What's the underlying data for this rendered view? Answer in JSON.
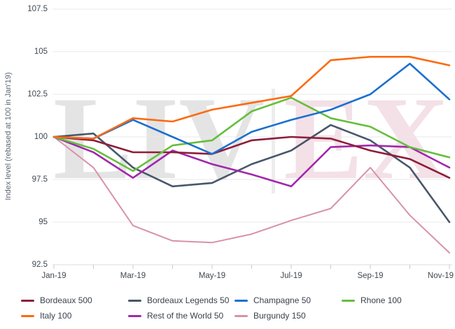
{
  "watermark": {
    "left": "LIV",
    "divider": "|",
    "right": "EX",
    "left_color": "#e4e4e4",
    "right_color": "#f3e1e7"
  },
  "chart_data": {
    "type": "line",
    "title": "",
    "ylabel": "Index level (rebased at 100 in Jan'19)",
    "xlabel": "",
    "ylim": [
      92.5,
      107.5
    ],
    "yticks": [
      "107.5",
      "105",
      "102.5",
      "100",
      "97.5",
      "95",
      "92.5"
    ],
    "ytick_values": [
      107.5,
      105,
      102.5,
      100,
      97.5,
      95,
      92.5
    ],
    "x": [
      "Jan-19",
      "Feb-19",
      "Mar-19",
      "Apr-19",
      "May-19",
      "Jun-19",
      "Jul-19",
      "Aug-19",
      "Sep-19",
      "Oct-19",
      "Nov-19"
    ],
    "xtick_labels": [
      "Jan-19",
      "Mar-19",
      "May-19",
      "Jul-19",
      "Sep-19",
      "Nov-19"
    ],
    "xtick_label_indices": [
      0,
      2,
      4,
      6,
      8,
      10
    ],
    "grid": "horizontal",
    "legend_position": "bottom",
    "series": [
      {
        "name": "Bordeaux 500",
        "color": "#8e1d3c",
        "values": [
          100,
          99.8,
          99.1,
          99.1,
          99.0,
          99.8,
          100.0,
          99.9,
          99.2,
          98.7,
          97.6
        ]
      },
      {
        "name": "Bordeaux Legends 50",
        "color": "#48576a",
        "values": [
          100,
          100.2,
          98.2,
          97.1,
          97.3,
          98.4,
          99.2,
          100.7,
          99.8,
          98.2,
          95.0
        ]
      },
      {
        "name": "Champagne 50",
        "color": "#1b6fd0",
        "values": [
          100,
          99.9,
          101.0,
          100.0,
          99.0,
          100.3,
          101.0,
          101.6,
          102.5,
          104.3,
          102.2
        ]
      },
      {
        "name": "Rhone 100",
        "color": "#65bf3b",
        "values": [
          100,
          99.3,
          98.0,
          99.5,
          99.8,
          101.5,
          102.3,
          101.1,
          100.6,
          99.4,
          98.8
        ]
      },
      {
        "name": "Italy 100",
        "color": "#fc6a10",
        "values": [
          100,
          99.9,
          101.1,
          100.9,
          101.6,
          102.0,
          102.4,
          104.5,
          104.7,
          104.7,
          104.2
        ]
      },
      {
        "name": "Rest of the World 50",
        "color": "#a227ad",
        "values": [
          100,
          99.1,
          97.6,
          99.2,
          98.4,
          97.8,
          97.1,
          99.4,
          99.5,
          99.4,
          98.2
        ]
      },
      {
        "name": "Burgundy 150",
        "color": "#d892a5",
        "values": [
          100,
          98.2,
          94.8,
          93.9,
          93.8,
          94.3,
          95.1,
          95.8,
          98.2,
          95.4,
          93.2
        ]
      }
    ],
    "legend_rows": [
      [
        "Bordeaux 500",
        "Bordeaux Legends 50",
        "Champagne 50",
        "Rhone 100"
      ],
      [
        "Italy 100",
        "Rest of the World 50",
        "Burgundy 150"
      ]
    ]
  }
}
